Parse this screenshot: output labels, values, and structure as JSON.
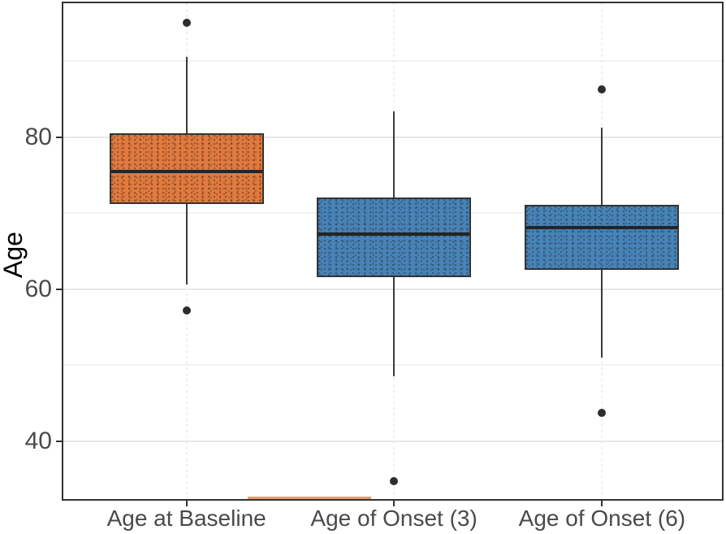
{
  "chart_data": {
    "type": "boxplot",
    "ylabel": "Age",
    "xlabel": "",
    "categories": [
      "Age at Baseline",
      "Age of Onset (3)",
      "Age of Onset (6)"
    ],
    "ylim": [
      32.4,
      97.6
    ],
    "y_major_ticks": [
      40,
      60,
      80
    ],
    "y_minor_gridlines": [
      50,
      70,
      90
    ],
    "grid": true,
    "legend": "none",
    "series": [
      {
        "name": "Age at Baseline",
        "fill": "#E07A3E",
        "q1": 71.3,
        "median": 75.7,
        "q3": 80.4,
        "whisker_low": 60.6,
        "whisker_high": 90.5,
        "outliers": [
          95.0,
          57.2
        ]
      },
      {
        "name": "Age of Onset (3)",
        "fill": "#4484BA",
        "q1": 61.7,
        "median": 67.5,
        "q3": 71.9,
        "whisker_low": 48.5,
        "whisker_high": 83.4,
        "outliers": [
          34.8
        ]
      },
      {
        "name": "Age of Onset (6)",
        "fill": "#4484BA",
        "q1": 62.6,
        "median": 68.3,
        "q3": 71.0,
        "whisker_low": 51.0,
        "whisker_high": 81.2,
        "outliers": [
          86.3,
          43.7
        ]
      }
    ],
    "colors": {
      "box_border": "#333333",
      "median": "#242424",
      "outlier": "#2d2d2d",
      "whisker": "#3a3a3a",
      "grid_major": "#e7e7e7",
      "grid_minor": "#f2f2f2",
      "panel_border": "#333333",
      "axis_text": "#4a4a4a",
      "axis_title": "#000000"
    }
  }
}
